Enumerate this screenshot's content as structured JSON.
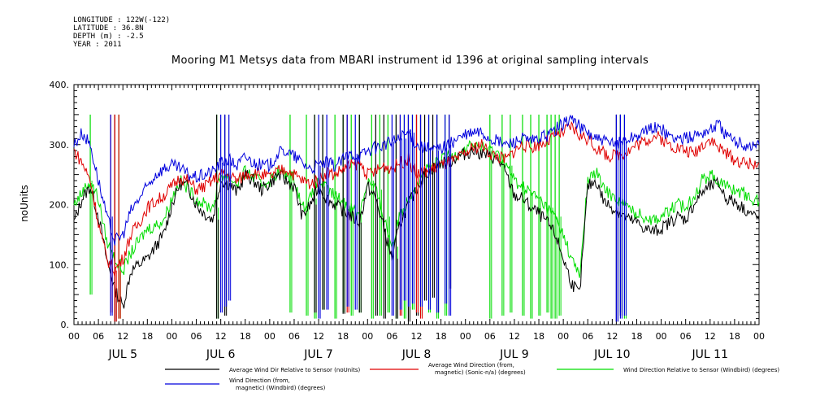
{
  "header": {
    "longitude": "LONGITUDE : 122W(-122)",
    "latitude": "LATITUDE : 36.8N",
    "depth": "DEPTH (m) : -2.5",
    "year": "YEAR : 2011"
  },
  "chart_data": {
    "type": "line",
    "title": "Mooring M1 Metsys data from MBARI instrument id 1396 at original sampling intervals",
    "ylabel": "noUnits",
    "ylim": [
      0,
      400
    ],
    "y_ticks": [
      "0.",
      "100.",
      "200.",
      "300.",
      "400."
    ],
    "x_hour_ticks": [
      "00",
      "06",
      "12",
      "18",
      "00",
      "06",
      "12",
      "18",
      "00",
      "06",
      "12",
      "18",
      "00",
      "06",
      "12",
      "18",
      "00",
      "06",
      "12",
      "18",
      "00",
      "06",
      "12",
      "18",
      "00",
      "06",
      "12",
      "18",
      "00"
    ],
    "x_day_labels": [
      "JUL 5",
      "JUL 6",
      "JUL 7",
      "JUL 8",
      "JUL 9",
      "JUL 10",
      "JUL 11"
    ],
    "xlim_hours": [
      0,
      168
    ],
    "grid": false,
    "legend_placement": "bottom",
    "series": [
      {
        "name": "Average Wind Dir Relative to Sensor (noUnits)",
        "color": "#000000",
        "hours": [
          0,
          2,
          4,
          6,
          8,
          10,
          12,
          14,
          16,
          18,
          20,
          22,
          24,
          26,
          28,
          30,
          32,
          34,
          36,
          38,
          40,
          42,
          44,
          46,
          48,
          50,
          52,
          54,
          56,
          58,
          60,
          62,
          64,
          66,
          68,
          70,
          72,
          74,
          76,
          78,
          80,
          82,
          84,
          86,
          88,
          90,
          92,
          94,
          96,
          98,
          100,
          102,
          104,
          106,
          108,
          110,
          112,
          114,
          116,
          118,
          120,
          122,
          124,
          126,
          128,
          130,
          132,
          134,
          136,
          138,
          140,
          142,
          144,
          146,
          148,
          150,
          152,
          154,
          156,
          158,
          160,
          162,
          164,
          166,
          168
        ],
        "values": [
          170,
          210,
          230,
          180,
          110,
          60,
          30,
          90,
          100,
          110,
          130,
          150,
          200,
          235,
          230,
          200,
          185,
          175,
          240,
          235,
          220,
          250,
          240,
          225,
          235,
          250,
          240,
          230,
          180,
          200,
          230,
          210,
          200,
          190,
          180,
          170,
          230,
          210,
          160,
          110,
          170,
          200,
          225,
          250,
          260,
          270,
          270,
          280,
          285,
          290,
          285,
          280,
          275,
          250,
          215,
          210,
          195,
          185,
          170,
          150,
          110,
          70,
          50,
          230,
          240,
          205,
          195,
          185,
          175,
          170,
          160,
          155,
          160,
          170,
          180,
          175,
          200,
          220,
          230,
          235,
          210,
          205,
          195,
          185,
          175
        ],
        "dropouts": [
          [
            10,
            5
          ],
          [
            35,
            10
          ],
          [
            37,
            15
          ],
          [
            59,
            20
          ],
          [
            61,
            25
          ],
          [
            66,
            18
          ],
          [
            70,
            20
          ],
          [
            74,
            15
          ],
          [
            76,
            10
          ],
          [
            79,
            10
          ],
          [
            82,
            5
          ],
          [
            84,
            15
          ],
          [
            86,
            40
          ],
          [
            88,
            45
          ],
          [
            89,
            20
          ],
          [
            92,
            60
          ],
          [
            133,
            5
          ],
          [
            134,
            15
          ]
        ]
      },
      {
        "name": "Average Wind Direction (from, magnetic) (Sonic-n/a) (degrees)",
        "color": "#e00000",
        "hours": [
          0,
          2,
          4,
          6,
          8,
          10,
          12,
          14,
          16,
          18,
          20,
          22,
          24,
          26,
          28,
          30,
          32,
          34,
          36,
          38,
          40,
          42,
          44,
          46,
          48,
          50,
          52,
          54,
          56,
          58,
          60,
          62,
          64,
          66,
          68,
          70,
          72,
          74,
          76,
          78,
          80,
          82,
          84,
          86,
          88,
          90,
          92,
          94,
          96,
          98,
          100,
          102,
          104,
          106,
          108,
          110,
          112,
          114,
          116,
          118,
          120,
          122,
          124,
          126,
          128,
          130,
          132,
          134,
          136,
          138,
          140,
          142,
          144,
          146,
          148,
          150,
          152,
          154,
          156,
          158,
          160,
          162,
          164,
          166,
          168
        ],
        "values": [
          290,
          270,
          240,
          170,
          110,
          90,
          110,
          150,
          170,
          195,
          205,
          215,
          230,
          245,
          240,
          225,
          230,
          240,
          250,
          250,
          240,
          250,
          255,
          250,
          245,
          255,
          260,
          250,
          240,
          235,
          240,
          255,
          250,
          260,
          265,
          270,
          250,
          255,
          265,
          260,
          270,
          275,
          250,
          255,
          260,
          265,
          270,
          275,
          285,
          295,
          300,
          285,
          280,
          275,
          290,
          300,
          295,
          300,
          305,
          315,
          320,
          330,
          315,
          310,
          295,
          285,
          280,
          285,
          290,
          300,
          305,
          315,
          310,
          300,
          295,
          290,
          285,
          300,
          310,
          295,
          285,
          275,
          270,
          268,
          270
        ],
        "dropouts": [
          [
            9,
            20
          ],
          [
            10,
            5
          ],
          [
            11,
            10
          ],
          [
            67,
            20
          ],
          [
            80,
            15
          ],
          [
            84,
            20
          ],
          [
            85,
            10
          ]
        ]
      },
      {
        "name": "Wind Direction Relative to Sensor (Windbird) (degrees)",
        "color": "#00dd00",
        "hours": [
          0,
          2,
          4,
          6,
          8,
          10,
          12,
          14,
          16,
          18,
          20,
          22,
          24,
          26,
          28,
          30,
          32,
          34,
          36,
          38,
          40,
          42,
          44,
          46,
          48,
          50,
          52,
          54,
          56,
          58,
          60,
          62,
          64,
          66,
          68,
          70,
          72,
          74,
          76,
          78,
          80,
          82,
          84,
          86,
          88,
          90,
          92,
          94,
          96,
          98,
          100,
          102,
          104,
          106,
          108,
          110,
          112,
          114,
          116,
          118,
          120,
          122,
          124,
          126,
          128,
          130,
          132,
          134,
          136,
          138,
          140,
          142,
          144,
          146,
          148,
          150,
          152,
          154,
          156,
          158,
          160,
          162,
          164,
          166,
          168
        ],
        "values": [
          200,
          220,
          240,
          210,
          140,
          110,
          90,
          120,
          140,
          160,
          165,
          175,
          210,
          240,
          225,
          210,
          200,
          195,
          250,
          245,
          235,
          255,
          245,
          235,
          240,
          255,
          250,
          245,
          195,
          210,
          240,
          225,
          215,
          205,
          195,
          185,
          240,
          225,
          180,
          130,
          185,
          210,
          235,
          255,
          265,
          275,
          280,
          285,
          295,
          300,
          295,
          290,
          285,
          265,
          240,
          230,
          220,
          210,
          195,
          180,
          150,
          110,
          80,
          240,
          255,
          225,
          215,
          205,
          195,
          185,
          180,
          175,
          180,
          190,
          200,
          195,
          215,
          240,
          250,
          240,
          230,
          225,
          220,
          210,
          205
        ],
        "dropouts": [
          [
            4,
            50
          ],
          [
            11,
            10
          ],
          [
            35,
            10
          ],
          [
            53,
            20
          ],
          [
            57,
            15
          ],
          [
            59,
            10
          ],
          [
            61,
            25
          ],
          [
            64,
            10
          ],
          [
            66,
            20
          ],
          [
            68,
            15
          ],
          [
            70,
            20
          ],
          [
            73,
            10
          ],
          [
            75,
            15
          ],
          [
            77,
            20
          ],
          [
            79,
            10
          ],
          [
            81,
            10
          ],
          [
            83,
            25
          ],
          [
            85,
            15
          ],
          [
            87,
            20
          ],
          [
            89,
            10
          ],
          [
            91,
            15
          ],
          [
            102,
            10
          ],
          [
            105,
            15
          ],
          [
            107,
            20
          ],
          [
            110,
            15
          ],
          [
            112,
            10
          ],
          [
            114,
            15
          ],
          [
            116,
            20
          ],
          [
            117,
            10
          ],
          [
            118,
            10
          ],
          [
            119,
            15
          ],
          [
            134,
            20
          ],
          [
            135,
            10
          ]
        ]
      },
      {
        "name": "Wind Direction (from, magnetic) (Windbird) (degrees)",
        "color": "#0000dd",
        "hours": [
          0,
          2,
          4,
          6,
          8,
          10,
          12,
          14,
          16,
          18,
          20,
          22,
          24,
          26,
          28,
          30,
          32,
          34,
          36,
          38,
          40,
          42,
          44,
          46,
          48,
          50,
          52,
          54,
          56,
          58,
          60,
          62,
          64,
          66,
          68,
          70,
          72,
          74,
          76,
          78,
          80,
          82,
          84,
          86,
          88,
          90,
          92,
          94,
          96,
          98,
          100,
          102,
          104,
          106,
          108,
          110,
          112,
          114,
          116,
          118,
          120,
          122,
          124,
          126,
          128,
          130,
          132,
          134,
          136,
          138,
          140,
          142,
          144,
          146,
          148,
          150,
          152,
          154,
          156,
          158,
          160,
          162,
          164,
          166,
          168
        ],
        "values": [
          300,
          320,
          300,
          240,
          180,
          140,
          150,
          190,
          210,
          230,
          250,
          260,
          265,
          260,
          250,
          245,
          250,
          255,
          270,
          275,
          265,
          280,
          270,
          265,
          265,
          285,
          290,
          280,
          270,
          260,
          265,
          270,
          265,
          275,
          285,
          280,
          290,
          295,
          300,
          305,
          310,
          320,
          300,
          295,
          290,
          295,
          300,
          310,
          315,
          320,
          320,
          310,
          305,
          300,
          305,
          310,
          305,
          310,
          315,
          325,
          335,
          345,
          330,
          320,
          310,
          305,
          300,
          305,
          310,
          315,
          320,
          330,
          325,
          315,
          310,
          310,
          315,
          320,
          325,
          335,
          315,
          305,
          300,
          298,
          300
        ],
        "dropouts": [
          [
            9,
            15
          ],
          [
            36,
            20
          ],
          [
            37,
            30
          ],
          [
            38,
            40
          ],
          [
            60,
            10
          ],
          [
            62,
            25
          ],
          [
            67,
            30
          ],
          [
            69,
            25
          ],
          [
            78,
            15
          ],
          [
            80,
            25
          ],
          [
            81,
            40
          ],
          [
            82,
            30
          ],
          [
            83,
            35
          ],
          [
            85,
            30
          ],
          [
            87,
            25
          ],
          [
            89,
            20
          ],
          [
            91,
            35
          ],
          [
            92,
            15
          ],
          [
            133,
            5
          ],
          [
            134,
            10
          ],
          [
            135,
            15
          ]
        ]
      }
    ]
  },
  "legend": [
    {
      "line1": "Average Wind Dir Relative to Sensor (noUnits)",
      "line2": ""
    },
    {
      "line1": "Average Wind Direction (from,",
      "line2": "magnetic) (Sonic-n/a) (degrees)"
    },
    {
      "line1": "Wind Direction Relative to Sensor (Windbird) (degrees)",
      "line2": ""
    },
    {
      "line1": "Wind Direction (from,",
      "line2": "magnetic) (Windbird) (degrees)"
    }
  ]
}
